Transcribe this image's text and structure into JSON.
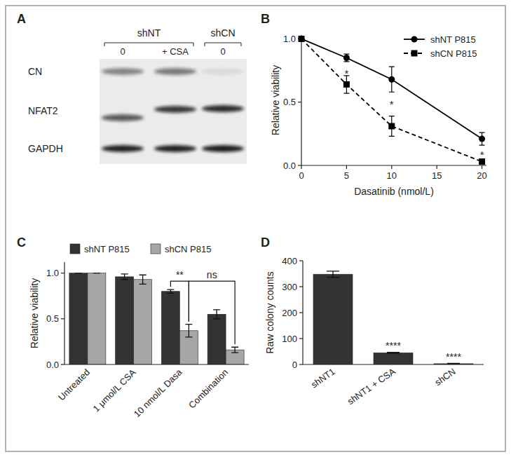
{
  "blot": {
    "title": "A",
    "groups": [
      {
        "label": "shNT",
        "lanes": [
          "0",
          "+ CSA"
        ]
      },
      {
        "label": "shCN",
        "lanes": [
          "0"
        ]
      }
    ],
    "rows": [
      "CN",
      "NFAT2",
      "GAPDH"
    ]
  },
  "chart_data": [
    {
      "type": "line",
      "title": "B",
      "x": [
        0,
        5,
        10,
        20
      ],
      "xlabel": "Dasatinib (nmol/L)",
      "ylabel": "Relative viability",
      "xlim": [
        0,
        20.5
      ],
      "ylim": [
        0,
        1.03
      ],
      "xticks": [
        0,
        5,
        10,
        15,
        20
      ],
      "yticks": [
        {
          "value": 0,
          "label": "0.0"
        },
        {
          "value": 0.5,
          "label": "0.5"
        },
        {
          "value": 1,
          "label": "1.0"
        }
      ],
      "grid": false,
      "legend": "upper right",
      "series": [
        {
          "name": "shNT P815",
          "color": "#000000",
          "marker": "circle",
          "line_style": "solid",
          "values": [
            1,
            0.85,
            0.68,
            0.21
          ],
          "errors": [
            0,
            0.03,
            0.1,
            0.05
          ]
        },
        {
          "name": "shCN P815",
          "color": "#000000",
          "marker": "square",
          "line_style": "dashed",
          "values": [
            1,
            0.64,
            0.31,
            0.03
          ],
          "errors": [
            0,
            0.07,
            0.08,
            0.02
          ]
        }
      ],
      "annotations": [
        {
          "text": "*",
          "x": 5,
          "y": 0.74
        },
        {
          "text": "*",
          "x": 10,
          "y": 0.5
        },
        {
          "text": "*",
          "x": 20,
          "y": 0.1
        }
      ]
    },
    {
      "type": "bar",
      "title": "C",
      "categories": [
        "Untreated",
        "1 μmol/L CSA",
        "10 nmol/L Dasa",
        "Combination"
      ],
      "ylabel": "Relative viability",
      "ylim": [
        0,
        1.12
      ],
      "yticks": [
        {
          "value": 0,
          "label": "0.0"
        },
        {
          "value": 0.5,
          "label": "0.5"
        },
        {
          "value": 1,
          "label": "1.0"
        }
      ],
      "grid": false,
      "legend": "top",
      "series": [
        {
          "name": "shNT P815",
          "color": "#333333",
          "values": [
            1,
            0.96,
            0.8,
            0.55
          ],
          "errors": [
            0,
            0.03,
            0.02,
            0.05
          ]
        },
        {
          "name": "shCN P815",
          "color": "#a6a6a6",
          "values": [
            1,
            0.93,
            0.37,
            0.16
          ],
          "errors": [
            0,
            0.05,
            0.07,
            0.03
          ]
        }
      ],
      "annotations": [
        {
          "text": "**",
          "from": {
            "series": "shNT P815",
            "category": "10 nmol/L Dasa"
          },
          "to": {
            "series": "shCN P815",
            "category": "10 nmol/L Dasa"
          }
        },
        {
          "text": "ns",
          "from": {
            "series": "shCN P815",
            "category": "10 nmol/L Dasa"
          },
          "to": {
            "series": "shCN P815",
            "category": "Combination"
          }
        }
      ]
    },
    {
      "type": "bar",
      "title": "D",
      "categories": [
        "shNT1",
        "shNT1 + CSA",
        "shCN"
      ],
      "values": [
        348,
        45,
        3
      ],
      "errors": [
        12,
        2,
        1
      ],
      "color": "#333333",
      "ylabel": "Raw colony counts",
      "ylim": [
        0,
        400
      ],
      "yticks": [
        0,
        100,
        200,
        300,
        400
      ],
      "grid": false,
      "annotations": [
        {
          "text": "****",
          "category": "shNT1 + CSA"
        },
        {
          "text": "****",
          "category": "shCN"
        }
      ]
    }
  ]
}
